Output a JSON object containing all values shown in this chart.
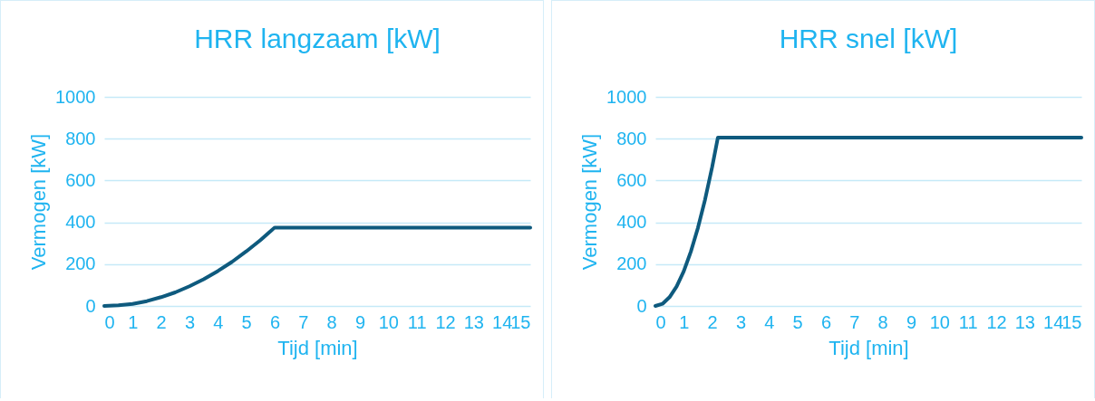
{
  "chart_data": [
    {
      "type": "line",
      "title": "HRR langzaam [kW]",
      "xlabel": "Tijd [min]",
      "ylabel": "Vermogen [kW]",
      "x": [
        0,
        0.5,
        1,
        1.5,
        2,
        2.5,
        3,
        3.5,
        4,
        4.5,
        5,
        5.5,
        6,
        15
      ],
      "series": [
        {
          "color": "#0e5a7e",
          "values": [
            0,
            3,
            10,
            23,
            42,
            65,
            94,
            128,
            167,
            211,
            261,
            315,
            375,
            375
          ]
        }
      ],
      "xlim": [
        0,
        15
      ],
      "xticks": [
        0,
        1,
        2,
        3,
        4,
        5,
        6,
        7,
        8,
        9,
        10,
        11,
        12,
        13,
        14,
        15
      ],
      "ylim": [
        0,
        1000
      ],
      "yticks": [
        0,
        200,
        400,
        600,
        800,
        1000
      ],
      "grid": "y"
    },
    {
      "type": "line",
      "title": "HRR snel [kW]",
      "xlabel": "Tijd [min]",
      "ylabel": "Vermogen [kW]",
      "x": [
        0,
        0.25,
        0.5,
        0.75,
        1,
        1.25,
        1.5,
        1.75,
        2,
        2.2,
        15
      ],
      "series": [
        {
          "color": "#0e5a7e",
          "values": [
            0,
            10,
            42,
            94,
            166,
            260,
            374,
            509,
            665,
            805,
            805
          ]
        }
      ],
      "xlim": [
        0,
        15
      ],
      "xticks": [
        0,
        1,
        2,
        3,
        4,
        5,
        6,
        7,
        8,
        9,
        10,
        11,
        12,
        13,
        14,
        15
      ],
      "ylim": [
        0,
        1000
      ],
      "yticks": [
        0,
        200,
        400,
        600,
        800,
        1000
      ],
      "grid": "y"
    }
  ]
}
